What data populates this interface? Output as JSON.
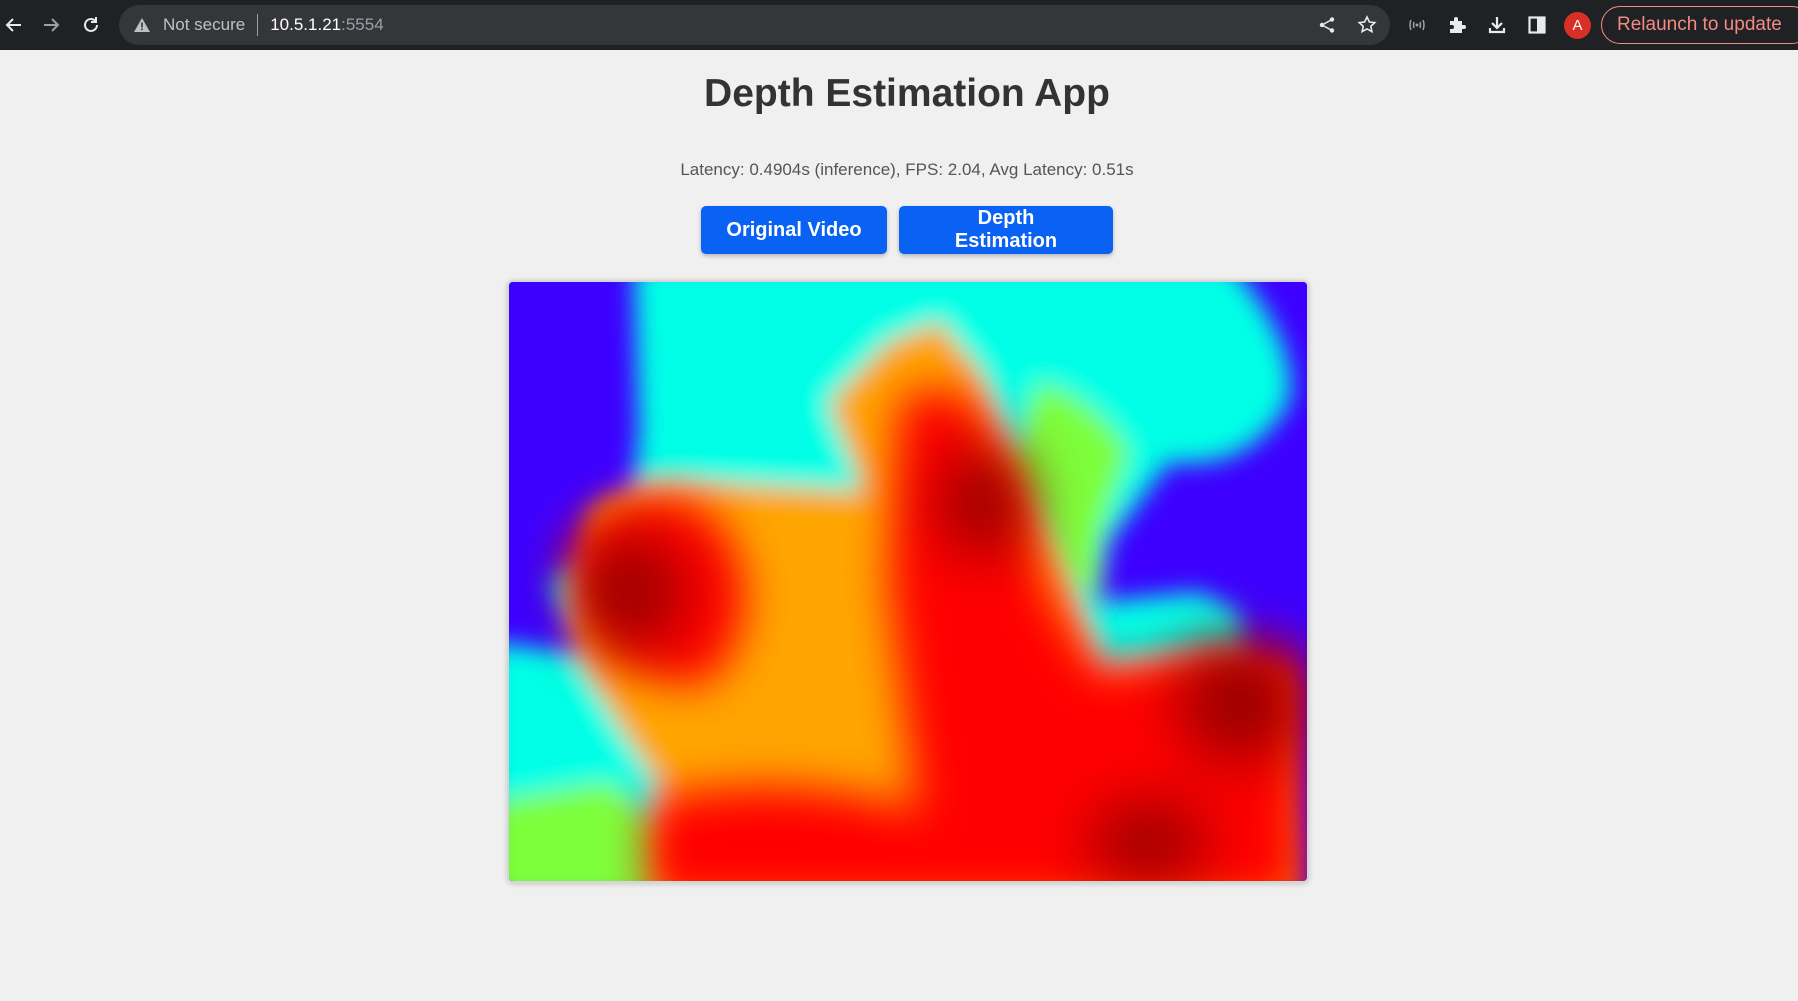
{
  "browser": {
    "security_label": "Not secure",
    "url_host": "10.5.1.21",
    "url_port": ":5554",
    "profile_initial": "A",
    "relaunch_label": "Relaunch to update",
    "icons": [
      "back-icon",
      "forward-icon",
      "reload-icon",
      "warning-icon",
      "share-icon",
      "bookmark-star-icon",
      "cast-icon",
      "extensions-icon",
      "download-icon",
      "side-panel-icon"
    ]
  },
  "app": {
    "title": "Depth Estimation App",
    "latency_text": "Latency: 0.4904s (inference), FPS: 2.04, Avg Latency: 0.51s",
    "buttons": {
      "original_label": "Original Video",
      "depth_label": "Depth Estimation"
    }
  },
  "depth_view": {
    "colormap": "jet",
    "colors": {
      "far": "#3d00ff",
      "mid_far": "#00ffe6",
      "mid": "#7dff3a",
      "mid_near": "#ffa500",
      "near": "#ff0000",
      "nearest": "#9a0000"
    }
  },
  "theme": {
    "accent": "#0a62f5",
    "background": "#f0f0f0",
    "browser_bar": "#202124"
  }
}
